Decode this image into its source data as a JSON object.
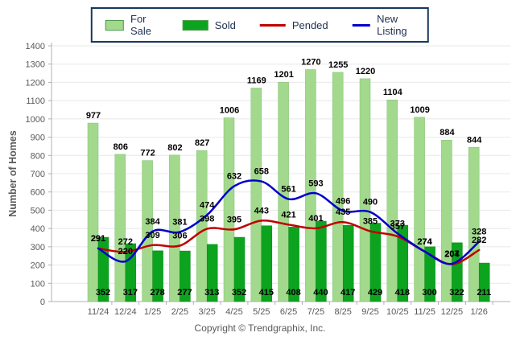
{
  "legend": {
    "items": [
      {
        "label": "For Sale",
        "type": "bar",
        "color": "#A3D98C"
      },
      {
        "label": "Sold",
        "type": "bar",
        "color": "#0CA31F"
      },
      {
        "label": "Pended",
        "type": "line",
        "color": "#C00000"
      },
      {
        "label": "New Listing",
        "type": "line",
        "color": "#0000CC"
      }
    ]
  },
  "footer": {
    "copyright": "Copyright © Trendgraphix, Inc."
  },
  "chart_data": {
    "type": "bar",
    "subtype": "combo-bar-line",
    "title": "",
    "xlabel": "",
    "ylabel": "Number of Homes",
    "ylim": [
      0,
      1400
    ],
    "ytick_step": 100,
    "grid": true,
    "legend_position": "top",
    "categories": [
      "11/24",
      "12/24",
      "1/25",
      "2/25",
      "3/25",
      "4/25",
      "5/25",
      "6/25",
      "7/25",
      "8/25",
      "9/25",
      "10/25",
      "11/25",
      "12/25",
      "1/26"
    ],
    "series": [
      {
        "name": "For Sale",
        "kind": "bar",
        "color": "#A3D98C",
        "border": "#7FBF72",
        "values": [
          977,
          806,
          772,
          802,
          827,
          1006,
          1169,
          1201,
          1270,
          1255,
          1220,
          1104,
          1009,
          884,
          844
        ]
      },
      {
        "name": "Sold",
        "kind": "bar",
        "color": "#0CA31F",
        "border": "#0A8A1A",
        "values": [
          352,
          317,
          278,
          277,
          313,
          352,
          415,
          408,
          440,
          417,
          429,
          418,
          300,
          322,
          211
        ]
      },
      {
        "name": "Pended",
        "kind": "line",
        "color": "#C00000",
        "values": [
          291,
          272,
          309,
          306,
          398,
          395,
          443,
          421,
          401,
          435,
          385,
          357,
          274,
          204,
          282
        ]
      },
      {
        "name": "New Listing",
        "kind": "line",
        "color": "#0000CC",
        "values": [
          291,
          220,
          384,
          381,
          474,
          632,
          658,
          561,
          593,
          496,
          490,
          373,
          274,
          207,
          328
        ]
      }
    ],
    "axis_color": "#B0B0B0",
    "grid_color": "#E8E8E8",
    "tick_label_color": "#595959",
    "data_label_color": "#000000"
  }
}
